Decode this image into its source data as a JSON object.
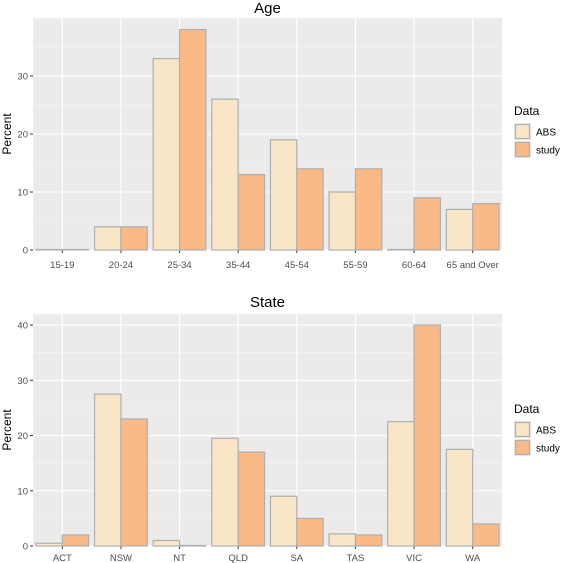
{
  "colors": {
    "panel": "#EBEBEB",
    "grid_major": "#FFFFFF",
    "grid_minor": "#F5F5F5",
    "bar_stroke": "#AFAFAF",
    "tick": "#333333"
  },
  "chart_data": [
    {
      "type": "bar",
      "title": "Age",
      "ylabel": "Percent",
      "xlabel": "",
      "ylim": [
        0,
        40
      ],
      "yticks": [
        0,
        10,
        20,
        30
      ],
      "grid": true,
      "legend": {
        "title": "Data",
        "position": "right"
      },
      "categories": [
        "15-19",
        "20-24",
        "25-34",
        "35-44",
        "45-54",
        "55-59",
        "60-64",
        "65 and Over"
      ],
      "series": [
        {
          "name": "ABS",
          "color": "#F8E6C6",
          "values": [
            0,
            4,
            33,
            26,
            19,
            10,
            0,
            7
          ]
        },
        {
          "name": "study",
          "color": "#FBB985",
          "values": [
            0,
            4,
            38,
            13,
            14,
            14,
            9,
            8
          ]
        }
      ]
    },
    {
      "type": "bar",
      "title": "State",
      "ylabel": "Percent",
      "xlabel": "",
      "ylim": [
        0,
        42
      ],
      "yticks": [
        0,
        10,
        20,
        30,
        40
      ],
      "grid": true,
      "legend": {
        "title": "Data",
        "position": "right"
      },
      "categories": [
        "ACT",
        "NSW",
        "NT",
        "QLD",
        "SA",
        "TAS",
        "VIC",
        "WA"
      ],
      "series": [
        {
          "name": "ABS",
          "color": "#F8E6C6",
          "values": [
            0.5,
            27.5,
            1,
            19.5,
            9,
            2.2,
            22.5,
            17.5
          ]
        },
        {
          "name": "study",
          "color": "#FBB985",
          "values": [
            2,
            23,
            0.1,
            17,
            5,
            2,
            40,
            4
          ]
        }
      ]
    }
  ]
}
